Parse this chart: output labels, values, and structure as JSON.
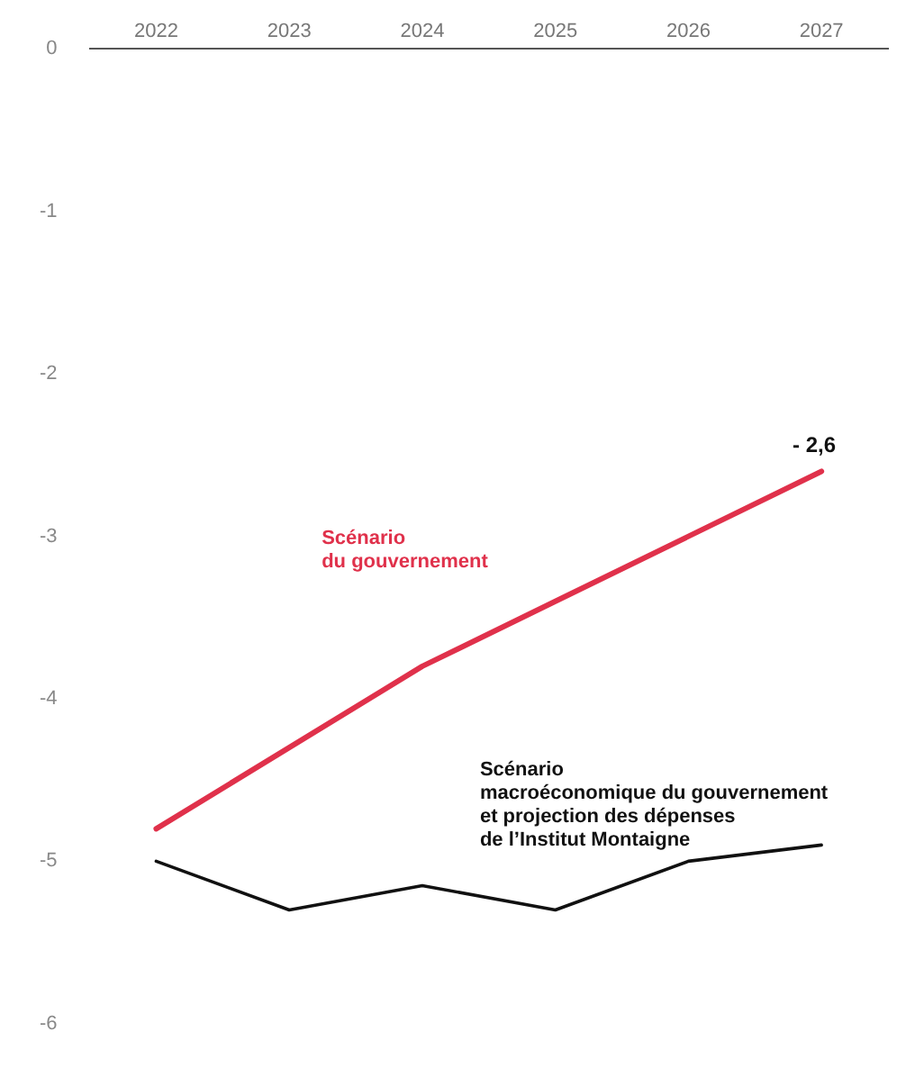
{
  "chart_data": {
    "type": "line",
    "categories": [
      "2022",
      "2023",
      "2024",
      "2025",
      "2026",
      "2027"
    ],
    "series": [
      {
        "name": "Scénario\ndu gouvernement",
        "color": "#e0314b",
        "values": [
          -4.8,
          -4.3,
          -3.8,
          -3.4,
          -3.0,
          -2.6
        ]
      },
      {
        "name": "Scénario\nmacroéconomique du gouvernement\net projection des dépenses\nde l’Institut Montaigne",
        "color": "#111111",
        "values": [
          -5.0,
          -5.3,
          -5.15,
          -5.3,
          -5.0,
          -4.9
        ]
      }
    ],
    "ylim": [
      -6,
      0
    ],
    "yticks": [
      {
        "value": 0,
        "label": "0"
      },
      {
        "value": -1,
        "label": "-1"
      },
      {
        "value": -2,
        "label": "-2"
      },
      {
        "value": -3,
        "label": "-3"
      },
      {
        "value": -4,
        "label": "-4"
      },
      {
        "value": -5,
        "label": "-5"
      },
      {
        "value": -6,
        "label": "-6"
      }
    ],
    "annotations": [
      {
        "text": "- 2,6",
        "x": "2027",
        "y": -2.6
      }
    ],
    "grid": false,
    "legend": false,
    "marker": "none",
    "line_style": "solid"
  }
}
